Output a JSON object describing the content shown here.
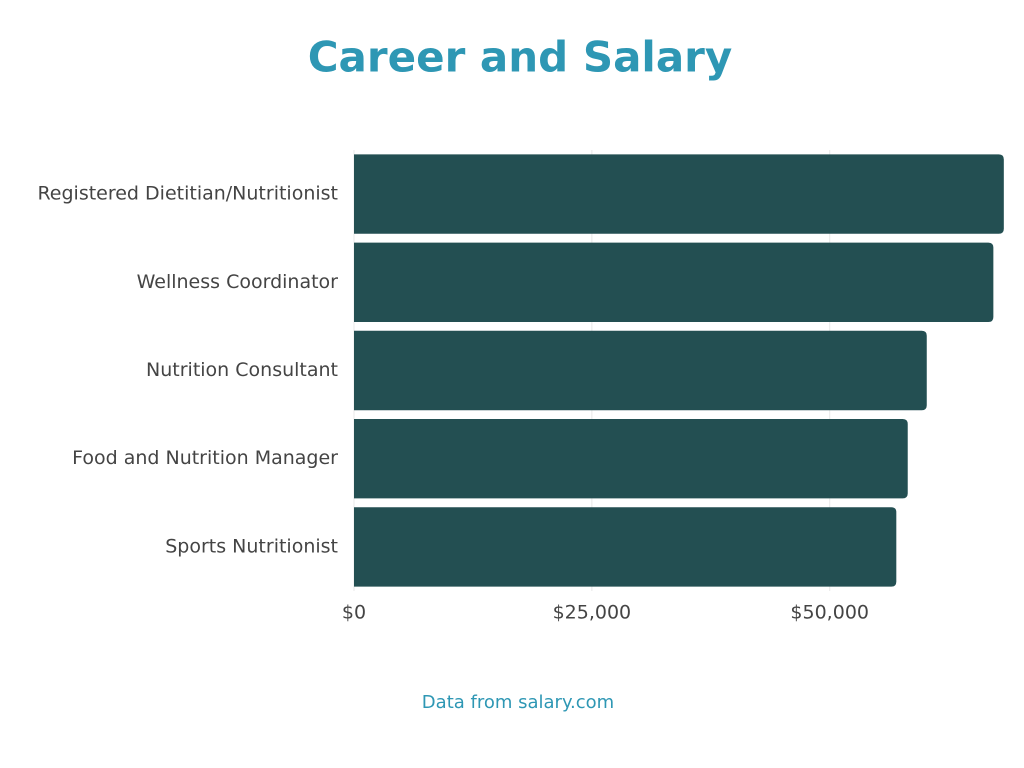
{
  "chart_data": {
    "type": "hbar",
    "title": "Career and Salary",
    "source": "Data from salary.com",
    "categories": [
      "Registered Dietitian/Nutritionist",
      "Wellness Coordinator",
      "Nutrition Consultant",
      "Food and Nutrition Manager",
      "Sports Nutritionist"
    ],
    "values": [
      68300,
      67200,
      60200,
      58200,
      57000
    ],
    "color": "#234f52",
    "xlim": [
      0,
      70000
    ],
    "xticks": [
      {
        "value": 0,
        "label": "$0"
      },
      {
        "value": 25000,
        "label": "$25,000"
      },
      {
        "value": 50000,
        "label": "$50,000"
      }
    ],
    "grid": true
  }
}
